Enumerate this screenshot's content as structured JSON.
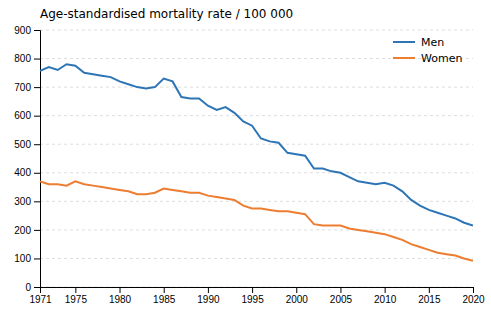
{
  "chart_data": {
    "type": "line",
    "title": "Age-standardised mortality rate / 100 000",
    "x": [
      1971,
      1972,
      1973,
      1974,
      1975,
      1976,
      1977,
      1978,
      1979,
      1980,
      1981,
      1982,
      1983,
      1984,
      1985,
      1986,
      1987,
      1988,
      1989,
      1990,
      1991,
      1992,
      1993,
      1994,
      1995,
      1996,
      1997,
      1998,
      1999,
      2000,
      2001,
      2002,
      2003,
      2004,
      2005,
      2006,
      2007,
      2008,
      2009,
      2010,
      2011,
      2012,
      2013,
      2014,
      2015,
      2016,
      2017,
      2018,
      2019,
      2020
    ],
    "series": [
      {
        "name": "Men",
        "color": "#2E75B6",
        "values": [
          757,
          770,
          760,
          780,
          775,
          750,
          745,
          740,
          735,
          720,
          710,
          700,
          695,
          700,
          730,
          720,
          665,
          660,
          660,
          635,
          620,
          630,
          610,
          580,
          565,
          520,
          510,
          505,
          470,
          465,
          460,
          415,
          415,
          405,
          400,
          385,
          370,
          365,
          360,
          365,
          355,
          335,
          305,
          285,
          270,
          260,
          250,
          240,
          225,
          215
        ]
      },
      {
        "name": "Women",
        "color": "#ED7D31",
        "values": [
          370,
          360,
          360,
          355,
          370,
          360,
          355,
          350,
          345,
          340,
          335,
          325,
          325,
          330,
          345,
          340,
          335,
          330,
          330,
          320,
          315,
          310,
          305,
          285,
          275,
          275,
          270,
          265,
          265,
          260,
          255,
          220,
          215,
          215,
          215,
          205,
          200,
          195,
          190,
          185,
          175,
          165,
          150,
          140,
          130,
          120,
          115,
          110,
          100,
          92
        ]
      }
    ],
    "xlim": [
      1971,
      2020
    ],
    "xticks": [
      1971,
      1975,
      1980,
      1985,
      1990,
      1995,
      2000,
      2005,
      2010,
      2015,
      2020
    ],
    "ylim": [
      0,
      900
    ],
    "yticks": [
      0,
      100,
      200,
      300,
      400,
      500,
      600,
      700,
      800,
      900
    ],
    "grid": true,
    "legend": "upper right"
  }
}
